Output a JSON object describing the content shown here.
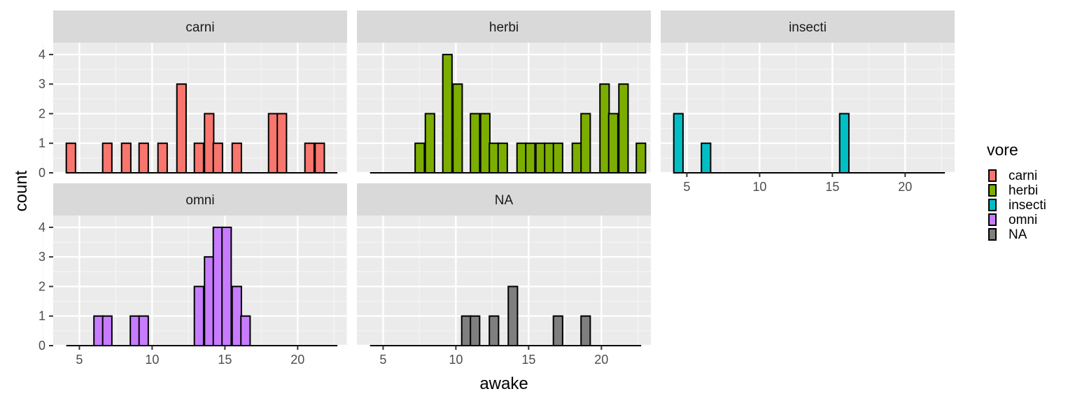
{
  "chart_data": {
    "type": "bar",
    "chart_kind": "faceted histogram",
    "xlabel": "awake",
    "ylabel": "count",
    "bin_width": 0.6333,
    "xlim": [
      4.1,
      22.1
    ],
    "ylim": [
      0,
      4
    ],
    "x_ticks": [
      5,
      10,
      15,
      20
    ],
    "y_ticks": [
      0,
      1,
      2,
      3,
      4
    ],
    "grid": true,
    "legend": {
      "title": "vore",
      "position": "right",
      "entries": [
        {
          "label": "carni",
          "color": "#F8766D"
        },
        {
          "label": "herbi",
          "color": "#7CAE00"
        },
        {
          "label": "insecti",
          "color": "#00BFC4"
        },
        {
          "label": "omni",
          "color": "#C77CFF"
        },
        {
          "label": "NA",
          "color": "#7F7F7F"
        }
      ]
    },
    "facets": [
      {
        "name": "carni",
        "color": "#F8766D",
        "bins": [
          {
            "x": 4.1,
            "count": 1
          },
          {
            "x": 6.6,
            "count": 1
          },
          {
            "x": 7.9,
            "count": 1
          },
          {
            "x": 9.1,
            "count": 1
          },
          {
            "x": 10.4,
            "count": 1
          },
          {
            "x": 11.7,
            "count": 3
          },
          {
            "x": 12.9,
            "count": 1
          },
          {
            "x": 13.6,
            "count": 2
          },
          {
            "x": 14.2,
            "count": 1
          },
          {
            "x": 15.5,
            "count": 1
          },
          {
            "x": 18.0,
            "count": 2
          },
          {
            "x": 18.6,
            "count": 2
          },
          {
            "x": 20.5,
            "count": 1
          },
          {
            "x": 21.2,
            "count": 1
          }
        ]
      },
      {
        "name": "herbi",
        "color": "#7CAE00",
        "bins": [
          {
            "x": 7.2,
            "count": 1
          },
          {
            "x": 7.9,
            "count": 2
          },
          {
            "x": 9.1,
            "count": 4
          },
          {
            "x": 9.8,
            "count": 3
          },
          {
            "x": 11.0,
            "count": 2
          },
          {
            "x": 11.7,
            "count": 2
          },
          {
            "x": 12.3,
            "count": 1
          },
          {
            "x": 12.9,
            "count": 1
          },
          {
            "x": 14.2,
            "count": 1
          },
          {
            "x": 14.8,
            "count": 1
          },
          {
            "x": 15.5,
            "count": 1
          },
          {
            "x": 16.1,
            "count": 1
          },
          {
            "x": 16.7,
            "count": 1
          },
          {
            "x": 18.0,
            "count": 1
          },
          {
            "x": 18.6,
            "count": 2
          },
          {
            "x": 19.9,
            "count": 3
          },
          {
            "x": 20.5,
            "count": 2
          },
          {
            "x": 21.2,
            "count": 3
          },
          {
            "x": 22.4,
            "count": 1
          }
        ]
      },
      {
        "name": "insecti",
        "color": "#00BFC4",
        "bins": [
          {
            "x": 4.1,
            "count": 2
          },
          {
            "x": 6.0,
            "count": 1
          },
          {
            "x": 15.5,
            "count": 2
          }
        ]
      },
      {
        "name": "omni",
        "color": "#C77CFF",
        "bins": [
          {
            "x": 6.0,
            "count": 1
          },
          {
            "x": 6.6,
            "count": 1
          },
          {
            "x": 8.5,
            "count": 1
          },
          {
            "x": 9.1,
            "count": 1
          },
          {
            "x": 12.9,
            "count": 2
          },
          {
            "x": 13.6,
            "count": 3
          },
          {
            "x": 14.2,
            "count": 4
          },
          {
            "x": 14.8,
            "count": 4
          },
          {
            "x": 15.5,
            "count": 2
          },
          {
            "x": 16.1,
            "count": 1
          }
        ]
      },
      {
        "name": "NA",
        "color": "#7F7F7F",
        "bins": [
          {
            "x": 10.4,
            "count": 1
          },
          {
            "x": 11.0,
            "count": 1
          },
          {
            "x": 12.3,
            "count": 1
          },
          {
            "x": 13.6,
            "count": 2
          },
          {
            "x": 16.7,
            "count": 1
          },
          {
            "x": 18.6,
            "count": 1
          }
        ]
      }
    ]
  }
}
